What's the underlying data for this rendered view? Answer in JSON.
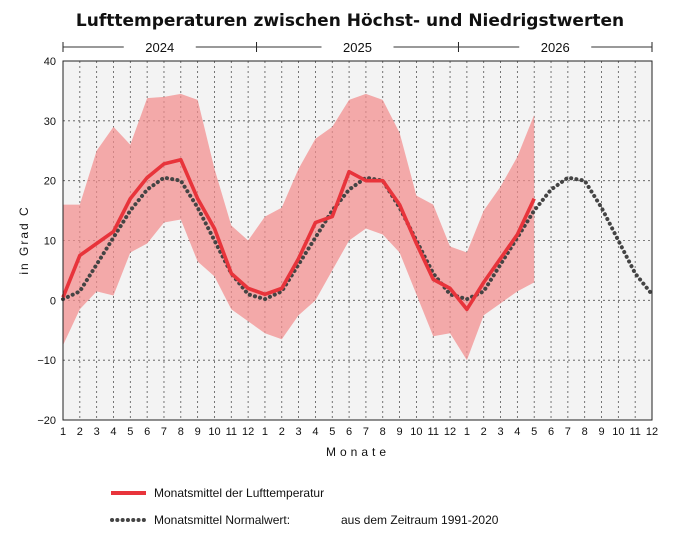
{
  "chart_data": {
    "type": "line",
    "title": "Lufttemperaturen zwischen Höchst- und Niedrigstwerten",
    "xlabel": "Monate",
    "ylabel": "in Grad C",
    "ylim": [
      -20,
      40
    ],
    "yticks": [
      -20,
      -10,
      0,
      10,
      20,
      30,
      40
    ],
    "grid": true,
    "years": [
      "2024",
      "2025",
      "2026"
    ],
    "x_tick_labels": [
      "1",
      "2",
      "3",
      "4",
      "5",
      "6",
      "7",
      "8",
      "9",
      "10",
      "11",
      "12",
      "1",
      "2",
      "3",
      "4",
      "5",
      "6",
      "7",
      "8",
      "9",
      "10",
      "11",
      "12",
      "1",
      "2",
      "3",
      "4",
      "5",
      "6",
      "7",
      "8",
      "9",
      "10",
      "11",
      "12"
    ],
    "series": [
      {
        "name": "Monatsmittel der Lufttemperatur",
        "color": "#e8343b",
        "style": "solid",
        "values": [
          0.5,
          7.5,
          9.5,
          11.5,
          17,
          20.5,
          22.8,
          23.5,
          17,
          12,
          4.5,
          2,
          1,
          2,
          7,
          13,
          14,
          21.5,
          20,
          20,
          16,
          9.5,
          3.5,
          2,
          -1.5,
          3,
          7,
          11,
          17
        ]
      },
      {
        "name": "Monatsmittel Normalwert:",
        "name_suffix": "aus dem Zeitraum 1991-2020",
        "color": "#444444",
        "style": "dotted",
        "values": [
          0.2,
          1.5,
          6,
          10.5,
          15,
          18.5,
          20.5,
          20,
          15.5,
          10,
          4.5,
          1,
          0.2,
          1.5,
          6,
          10.5,
          15,
          18.5,
          20.5,
          20,
          15.5,
          10,
          4.5,
          1,
          0.2,
          1.5,
          6,
          10.5,
          15,
          18.5,
          20.5,
          20,
          15.5,
          10,
          4.5,
          1
        ]
      }
    ],
    "band": {
      "color": "#f28c8c",
      "upper": [
        16,
        16,
        25,
        29,
        26,
        33.8,
        34,
        34.5,
        33.5,
        22,
        12.5,
        10,
        14,
        15.5,
        22,
        27,
        29,
        33.5,
        34.5,
        33.5,
        28,
        17.5,
        16,
        9,
        8,
        15,
        19,
        24,
        31
      ],
      "lower": [
        -7.5,
        -1.5,
        1.5,
        0.8,
        8,
        9.5,
        13,
        13.5,
        6.5,
        4,
        -1.5,
        -3.5,
        -5.5,
        -6.5,
        -2.5,
        0,
        5,
        10,
        12,
        11,
        8,
        1,
        -6,
        -5.5,
        -10,
        -2.5,
        -0.5,
        1.5,
        3
      ]
    },
    "legend": [
      {
        "label": "Monatsmittel der Lufttemperatur"
      },
      {
        "label": "Monatsmittel Normalwert:",
        "extra": "aus dem Zeitraum 1991-2020"
      }
    ]
  }
}
